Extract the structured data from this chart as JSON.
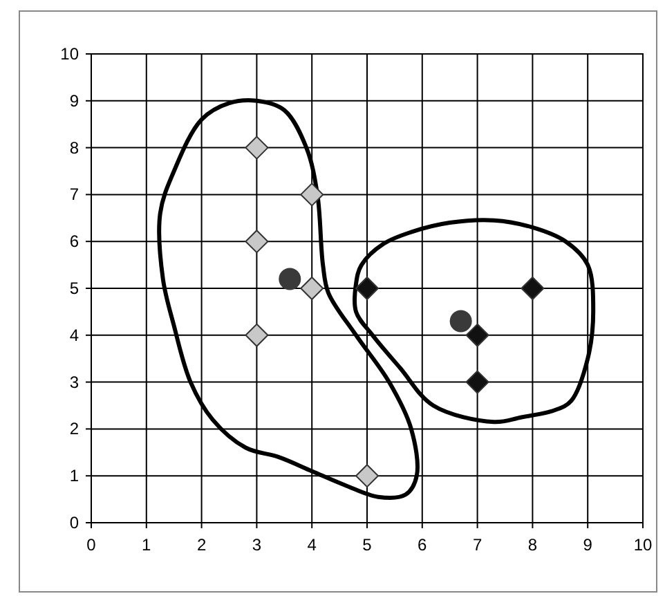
{
  "chart_data": {
    "type": "scatter",
    "xlim": [
      0,
      10
    ],
    "ylim": [
      0,
      10
    ],
    "xticks": [
      0,
      1,
      2,
      3,
      4,
      5,
      6,
      7,
      8,
      9,
      10
    ],
    "yticks": [
      0,
      1,
      2,
      3,
      4,
      5,
      6,
      7,
      8,
      9,
      10
    ],
    "grid": true,
    "series": [
      {
        "color": "#c8c8c8",
        "marker": "diamond",
        "x": [
          3,
          4,
          3,
          4,
          3,
          5
        ],
        "values": [
          8,
          7,
          6,
          5,
          4,
          1
        ]
      },
      {
        "color": "#111111",
        "marker": "diamond",
        "x": [
          5,
          7,
          8,
          7
        ],
        "values": [
          5,
          4,
          5,
          3
        ]
      },
      {
        "color": "#3a3a3a",
        "marker": "circle",
        "x": [
          3.6,
          6.7
        ],
        "values": [
          5.2,
          4.3
        ]
      }
    ]
  }
}
